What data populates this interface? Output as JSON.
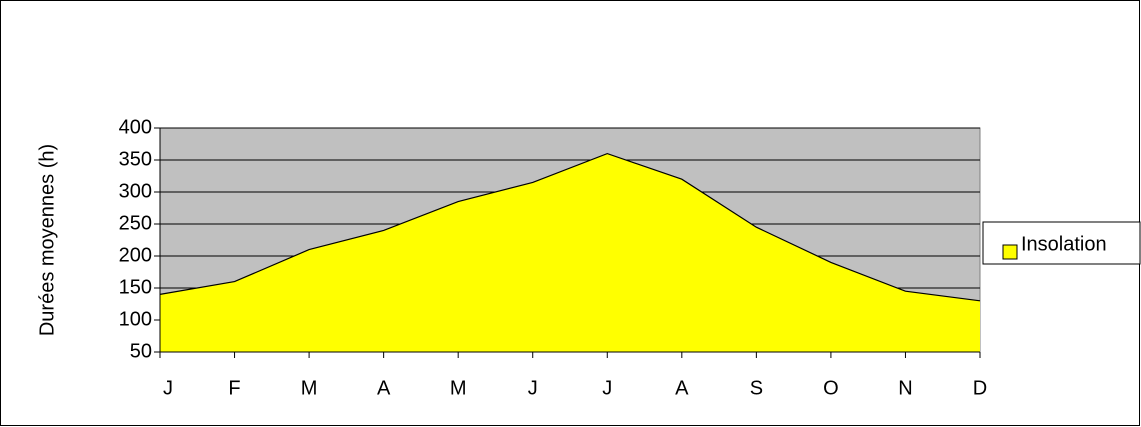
{
  "chart_data": {
    "type": "area",
    "y_label": "Durées moyennes (h)",
    "categories": [
      "J",
      "F",
      "M",
      "A",
      "M",
      "J",
      "J",
      "A",
      "S",
      "O",
      "N",
      "D"
    ],
    "series": [
      {
        "name": "Insolation",
        "color": "#ffff00",
        "values": [
          140,
          160,
          210,
          240,
          285,
          315,
          360,
          320,
          245,
          190,
          145,
          130
        ]
      }
    ],
    "ylim": [
      50,
      400
    ],
    "yticks": [
      50,
      100,
      150,
      200,
      250,
      300,
      350,
      400
    ],
    "grid": true,
    "legend": "right",
    "plot_background": "#c0c0c0"
  }
}
